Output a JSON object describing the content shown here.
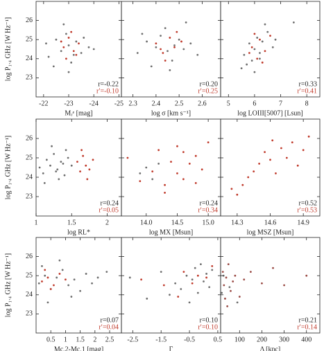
{
  "chart_data": [
    {
      "type": "scatter",
      "xlabel": "Mᵣᵉ [mag]",
      "ylabel": "log P₁.₄ GHz [W Hz⁻¹]",
      "xlim": [
        -21.7,
        -25.1
      ],
      "xticks": [
        -22,
        -23,
        -24,
        -25
      ],
      "ylim": [
        22,
        27
      ],
      "yticks": [
        23,
        24,
        25,
        26
      ],
      "series": [
        {
          "color": "#6e6e6e",
          "x": [
            -22.2,
            -22.5,
            -22.7,
            -22.9,
            -23.0,
            -23.1,
            -23.3,
            -23.5,
            -23.8,
            -22.4,
            -22.8,
            -23.2,
            -23.6,
            -22.1,
            -24.0,
            -23.0
          ],
          "y": [
            24.1,
            25.0,
            24.4,
            25.3,
            24.7,
            23.8,
            24.9,
            24.3,
            24.6,
            23.6,
            25.8,
            24.2,
            25.1,
            24.8,
            24.5,
            23.3
          ]
        },
        {
          "color": "#c03a2b",
          "x": [
            -22.8,
            -23.0,
            -23.2,
            -22.9,
            -23.4,
            -23.1,
            -22.7,
            -23.3
          ],
          "y": [
            24.6,
            25.1,
            24.4,
            24.0,
            24.8,
            25.4,
            24.9,
            24.2
          ]
        }
      ],
      "annotations": [
        {
          "text": "r=-0.22",
          "color": "#222222"
        },
        {
          "text": "r′=-0.10",
          "color": "#c03a2b"
        }
      ]
    },
    {
      "type": "scatter",
      "xlabel": "log σ [km s⁻¹]",
      "xlim": [
        2.25,
        2.68
      ],
      "xticks": [
        2.3,
        2.4,
        2.5,
        2.6
      ],
      "ylim": [
        22,
        27
      ],
      "yticks": [
        23,
        24,
        25,
        26
      ],
      "series": [
        {
          "color": "#6e6e6e",
          "x": [
            2.32,
            2.36,
            2.4,
            2.42,
            2.45,
            2.47,
            2.5,
            2.52,
            2.55,
            2.38,
            2.44,
            2.48,
            2.58,
            2.34,
            2.46,
            2.53
          ],
          "y": [
            24.3,
            24.9,
            24.6,
            25.2,
            24.4,
            23.9,
            25.0,
            24.5,
            24.8,
            23.6,
            25.6,
            24.7,
            24.2,
            25.3,
            23.4,
            25.9
          ]
        },
        {
          "color": "#c03a2b",
          "x": [
            2.4,
            2.43,
            2.46,
            2.48,
            2.51,
            2.44,
            2.49,
            2.42
          ],
          "y": [
            24.8,
            24.3,
            25.1,
            24.6,
            24.9,
            23.9,
            25.4,
            24.5
          ]
        }
      ],
      "annotations": [
        {
          "text": "r=0.20",
          "color": "#222222"
        },
        {
          "text": "r′=0.25",
          "color": "#c03a2b"
        }
      ]
    },
    {
      "type": "scatter",
      "xlabel": "log LOIII[5007] [Lsun]",
      "xlim": [
        4.7,
        8.5
      ],
      "xticks": [
        5,
        6,
        7,
        8
      ],
      "ylim": [
        22,
        27
      ],
      "yticks": [
        23,
        24,
        25,
        26
      ],
      "series": [
        {
          "color": "#6e6e6e",
          "x": [
            5.6,
            5.8,
            5.9,
            6.0,
            6.1,
            6.2,
            6.3,
            6.5,
            6.7,
            5.7,
            6.4,
            6.0,
            7.5,
            6.2,
            5.5,
            6.8
          ],
          "y": [
            24.2,
            24.8,
            23.9,
            24.5,
            25.1,
            24.3,
            24.9,
            25.4,
            24.6,
            23.7,
            25.8,
            23.3,
            25.9,
            24.0,
            23.5,
            25.0
          ]
        },
        {
          "color": "#c03a2b",
          "x": [
            5.9,
            6.1,
            6.2,
            6.4,
            6.0,
            6.3,
            6.6,
            5.8
          ],
          "y": [
            24.6,
            24.0,
            25.0,
            24.4,
            25.3,
            23.8,
            25.2,
            24.3
          ]
        }
      ],
      "annotations": [
        {
          "text": "r=0.33",
          "color": "#222222"
        },
        {
          "text": "r′=0.41",
          "color": "#c03a2b"
        }
      ]
    },
    {
      "type": "scatter",
      "xlabel": "log RL*",
      "ylabel": "log P₁.₄ GHz [W Hz⁻¹]",
      "xlim": [
        1.0,
        2.2
      ],
      "xticks": [
        1,
        1.5,
        2
      ],
      "ylim": [
        22,
        27
      ],
      "yticks": [
        23,
        24,
        25,
        26
      ],
      "series": [
        {
          "color": "#6e6e6e",
          "x": [
            1.05,
            1.1,
            1.15,
            1.2,
            1.25,
            1.3,
            1.35,
            1.4,
            1.45,
            1.5,
            1.12,
            1.22,
            1.32,
            1.42,
            1.28,
            1.38
          ],
          "y": [
            24.5,
            24.2,
            24.9,
            24.6,
            25.2,
            24.4,
            24.8,
            24.1,
            25.0,
            24.6,
            23.7,
            25.6,
            23.9,
            25.4,
            24.3,
            24.7
          ]
        },
        {
          "color": "#c03a2b",
          "x": [
            1.58,
            1.62,
            1.66,
            1.7,
            1.75,
            1.8,
            1.64,
            1.72
          ],
          "y": [
            24.8,
            24.3,
            25.1,
            24.6,
            24.4,
            24.9,
            25.4,
            23.9
          ]
        }
      ],
      "annotations": [
        {
          "text": "r=0.24",
          "color": "#222222"
        },
        {
          "text": "r′=0.05",
          "color": "#c03a2b"
        }
      ]
    },
    {
      "type": "scatter",
      "xlabel": "log MX [Msun]",
      "xlim": [
        13.6,
        15.2
      ],
      "xticks": [
        {
          "value": 14,
          "label": "14.0"
        },
        14.5,
        {
          "value": 15,
          "label": "15.0"
        }
      ],
      "ylim": [
        22,
        27
      ],
      "yticks": [
        23,
        24,
        25,
        26
      ],
      "series": [
        {
          "color": "#6e6e6e",
          "x": [
            13.9,
            14.0,
            14.1,
            14.2
          ],
          "y": [
            24.2,
            24.5,
            23.9,
            24.7
          ]
        },
        {
          "color": "#c03a2b",
          "x": [
            13.7,
            13.9,
            14.1,
            14.2,
            14.3,
            14.4,
            14.5,
            14.5,
            14.6,
            14.7,
            14.8,
            14.9,
            15.0,
            14.3,
            14.6,
            14.8
          ],
          "y": [
            25.0,
            23.8,
            24.3,
            25.4,
            23.6,
            24.8,
            24.2,
            25.6,
            23.9,
            24.7,
            25.1,
            24.4,
            25.8,
            23.2,
            25.3,
            23.7
          ]
        }
      ],
      "annotations": [
        {
          "text": "r=0.24",
          "color": "#222222"
        },
        {
          "text": "r′=0.34",
          "color": "#c03a2b"
        }
      ]
    },
    {
      "type": "scatter",
      "xlabel": "log MSZ [Msun]",
      "xlim": [
        14.15,
        15.05
      ],
      "xticks": [
        14.3,
        14.6,
        14.9
      ],
      "ylim": [
        22,
        27
      ],
      "yticks": [
        23,
        24,
        25,
        26
      ],
      "series": [
        {
          "color": "#c03a2b",
          "x": [
            14.25,
            14.3,
            14.4,
            14.45,
            14.5,
            14.55,
            14.6,
            14.65,
            14.7,
            14.75,
            14.8,
            14.85,
            14.9,
            14.95,
            14.35,
            14.62
          ],
          "y": [
            23.4,
            23.1,
            24.0,
            24.3,
            24.7,
            25.3,
            24.9,
            24.2,
            25.5,
            25.0,
            25.8,
            24.6,
            25.4,
            26.1,
            23.6,
            25.9
          ]
        }
      ],
      "annotations": [
        {
          "text": "r=0.52",
          "color": "#222222"
        },
        {
          "text": "r′=0.53",
          "color": "#c03a2b"
        }
      ]
    },
    {
      "type": "scatter",
      "xlabel": "Mc,2-Mc,1 [mag]",
      "ylabel": "log P₁.₄ GHz [W Hz⁻¹]",
      "xlim": [
        0,
        2.9
      ],
      "xticks": [
        0.5,
        1,
        1.5,
        2,
        2.5
      ],
      "ylim": [
        22,
        27
      ],
      "yticks": [
        23,
        24,
        25,
        26
      ],
      "series": [
        {
          "color": "#6e6e6e",
          "x": [
            0.1,
            0.3,
            0.5,
            0.7,
            0.9,
            1.1,
            1.3,
            1.5,
            1.7,
            1.9,
            2.1,
            2.4,
            0.4,
            0.8,
            1.2,
            0.2
          ],
          "y": [
            24.6,
            25.0,
            24.3,
            24.9,
            25.3,
            24.5,
            24.8,
            24.2,
            25.1,
            24.6,
            24.9,
            25.2,
            23.6,
            25.8,
            23.9,
            25.5
          ]
        },
        {
          "color": "#c03a2b",
          "x": [
            0.2,
            0.4,
            0.6,
            0.8,
            1.0,
            0.3,
            0.5
          ],
          "y": [
            24.7,
            24.9,
            24.5,
            25.1,
            24.8,
            25.3,
            24.3
          ]
        }
      ],
      "annotations": [
        {
          "text": "r=0.07",
          "color": "#222222"
        },
        {
          "text": "r′=0.04",
          "color": "#c03a2b"
        }
      ]
    },
    {
      "type": "scatter",
      "xlabel": "Γ",
      "xlim": [
        -2.9,
        0.6
      ],
      "xticks": [
        -2.5,
        -1.5,
        -0.5,
        0.5
      ],
      "ylim": [
        22,
        27
      ],
      "yticks": [
        23,
        24,
        25,
        26
      ],
      "series": [
        {
          "color": "#6e6e6e",
          "x": [
            -2.6,
            -2.0,
            -1.5,
            -1.0,
            -0.8,
            -0.6,
            -0.4,
            -0.3,
            -0.2,
            -0.1,
            0.0,
            0.1,
            0.2,
            0.3,
            -0.5,
            -1.2
          ],
          "y": [
            24.9,
            23.8,
            25.2,
            24.6,
            24.3,
            25.0,
            24.8,
            25.4,
            24.1,
            25.6,
            24.7,
            25.1,
            24.4,
            25.3,
            23.6,
            24.0
          ]
        },
        {
          "color": "#c03a2b",
          "x": [
            -2.2,
            -1.4,
            -0.7,
            -0.4,
            -0.2,
            0.1,
            0.3,
            -0.9
          ],
          "y": [
            24.8,
            24.5,
            25.2,
            24.6,
            25.0,
            24.9,
            25.5,
            23.9
          ]
        }
      ],
      "annotations": [
        {
          "text": "r=0.10",
          "color": "#222222"
        },
        {
          "text": "r′=0.10",
          "color": "#c03a2b"
        }
      ]
    },
    {
      "type": "scatter",
      "xlabel": "Δ [kpc]",
      "xlim": [
        15,
        460
      ],
      "xticks": [
        100,
        200,
        300,
        400
      ],
      "ylim": [
        22,
        27
      ],
      "yticks": [
        23,
        24,
        25,
        26
      ],
      "series": [
        {
          "color": "#6e6e6e",
          "x": [
            20,
            28,
            55,
            90
          ],
          "y": [
            24.1,
            25.0,
            24.4,
            23.6
          ]
        },
        {
          "color": "#9a4a44",
          "x": [
            25,
            30,
            35,
            40,
            50,
            60,
            70,
            80,
            100,
            120,
            150,
            200,
            250,
            300,
            400,
            45
          ],
          "y": [
            25.2,
            24.5,
            23.8,
            24.9,
            25.6,
            24.2,
            24.7,
            25.0,
            23.9,
            24.8,
            25.2,
            24.6,
            25.4,
            24.5,
            25.0,
            23.4
          ]
        }
      ],
      "annotations": [
        {
          "text": "r=0.21",
          "color": "#222222"
        },
        {
          "text": "r′=0.14",
          "color": "#c03a2b"
        }
      ]
    }
  ]
}
